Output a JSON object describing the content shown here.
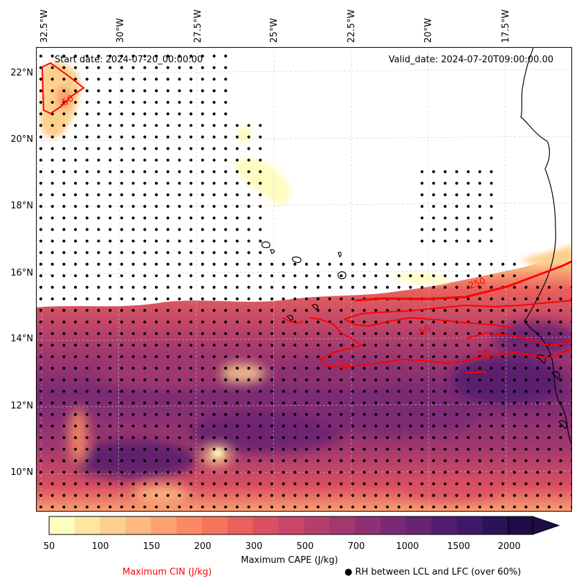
{
  "map": {
    "start_date": "Start date: 2024-07-20_00:00:00",
    "valid_date": "Valid_date: 2024-07-20T09:00:00.00",
    "lon_ticks": [
      "32.5°W",
      "30°W",
      "27.5°W",
      "25°W",
      "22.5°W",
      "20°W",
      "17.5°W"
    ],
    "lat_ticks": [
      "22°N",
      "20°N",
      "18°N",
      "16°N",
      "14°N",
      "12°N",
      "10°N"
    ],
    "contour_labels": [
      "-50",
      "-250",
      "-50",
      "-50",
      "-50"
    ]
  },
  "colorbar": {
    "ticks": [
      "50",
      "100",
      "150",
      "200",
      "300",
      "500",
      "700",
      "1000",
      "1500",
      "2000"
    ],
    "title": "Maximum CAPE (J/kg)",
    "colors": [
      "#fffcbf",
      "#fee6a1",
      "#fdd08e",
      "#fdb97e",
      "#fca271",
      "#fb8a64",
      "#f4745c",
      "#e9605c",
      "#da4f62",
      "#c84667",
      "#b53f6c",
      "#a2386f",
      "#8e3172",
      "#7a2a74",
      "#672473",
      "#521d6e",
      "#3e1869",
      "#2a1357",
      "#1d0c45"
    ],
    "extend": "max"
  },
  "legend": {
    "cin_label": "Maximum CIN (J/kg)",
    "cin_color": "#ff0000",
    "rh_marker": "●",
    "rh_label": "RH between LCL and LFC (over 60%)"
  }
}
